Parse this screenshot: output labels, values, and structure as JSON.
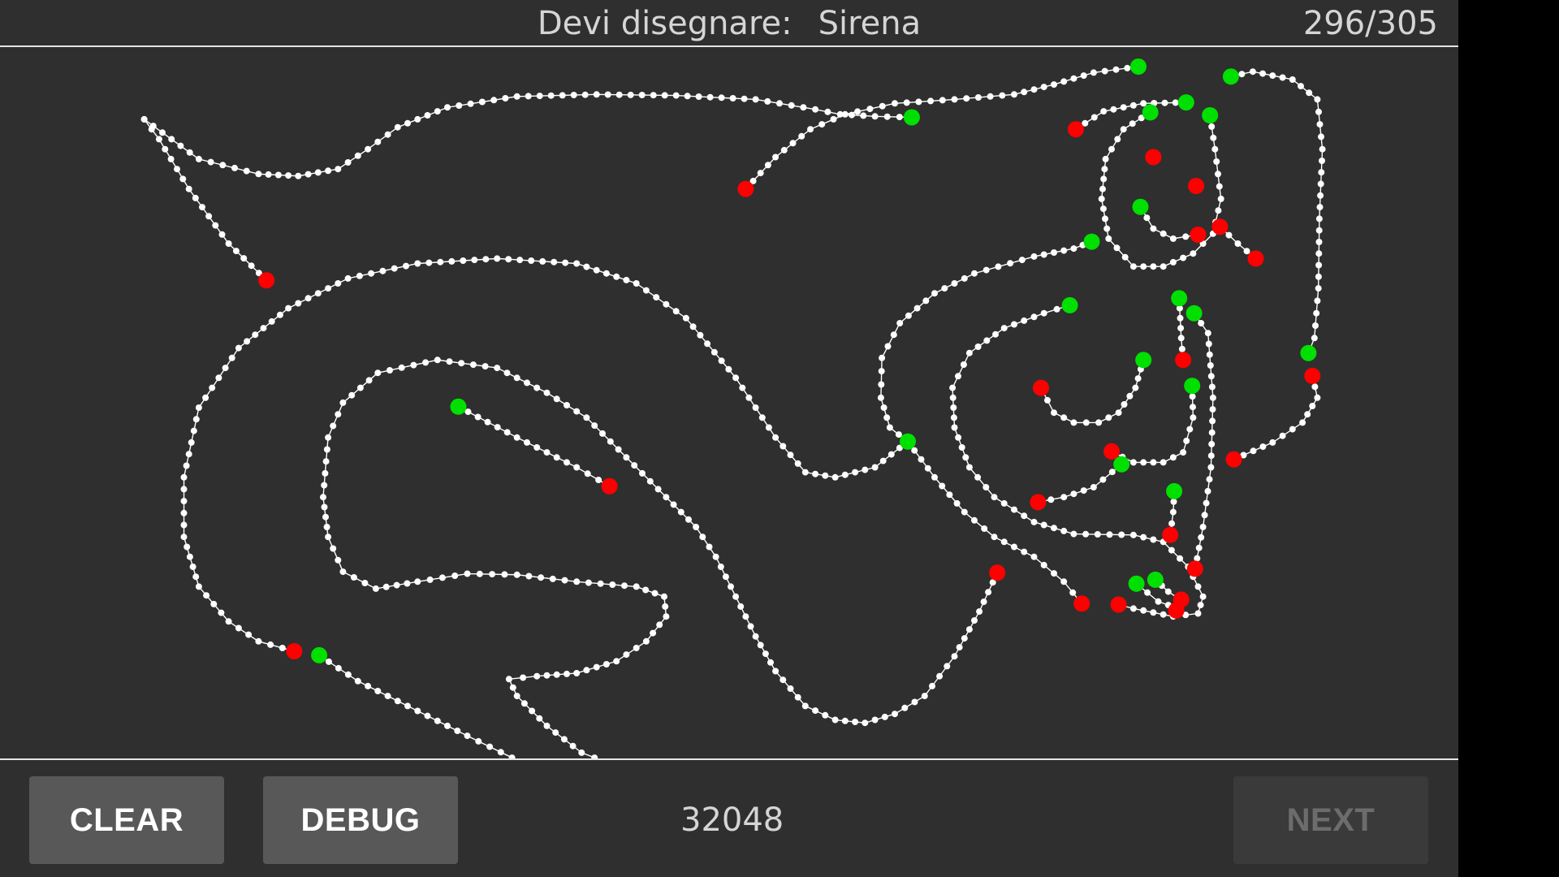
{
  "header": {
    "prompt_label": "Devi disegnare:",
    "target_word": "Sirena",
    "progress": "296/305"
  },
  "footer": {
    "clear_label": "CLEAR",
    "debug_label": "DEBUG",
    "score": "32048",
    "next_label": "NEXT",
    "next_enabled": false
  },
  "colors": {
    "background": "#2f2f2f",
    "stroke": "#ffffff",
    "stroke_start_marker": "#00e000",
    "stroke_end_marker": "#ff0000"
  }
}
